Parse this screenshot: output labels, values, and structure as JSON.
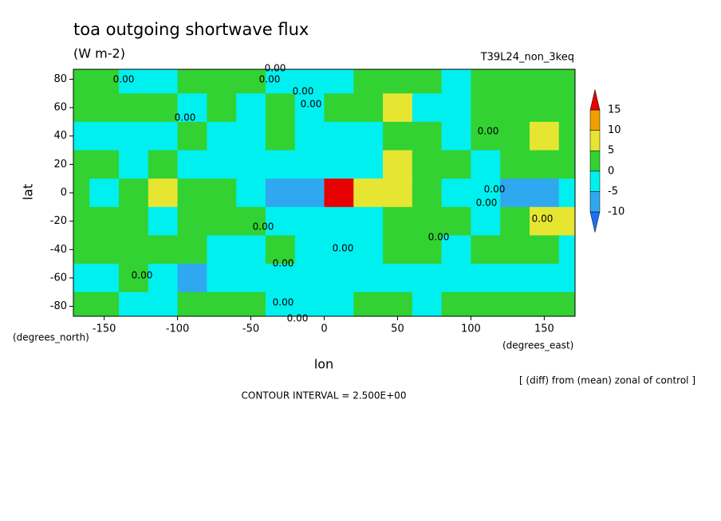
{
  "chart_data": {
    "type": "contour",
    "title": "toa outgoing shortwave flux",
    "subtitle": "(W m-2)",
    "run_label": "T39L24_non_3keq",
    "xlabel": "lon",
    "ylabel": "lat",
    "x_unit_label": "(degrees_east)",
    "y_unit_label": "(degrees_north)",
    "note": "[ (diff) from (mean) zonal of control ]",
    "contour_interval": "CONTOUR INTERVAL = 2.500E+00",
    "contour_label": "0.00",
    "x": [
      -170,
      -150,
      -130,
      -110,
      -90,
      -70,
      -50,
      -30,
      -10,
      10,
      30,
      50,
      70,
      90,
      110,
      130,
      150,
      170
    ],
    "y": [
      80,
      60,
      40,
      20,
      0,
      -20,
      -40,
      -60,
      -80
    ],
    "z": [
      [
        2,
        1,
        -2,
        -1,
        1,
        2,
        1,
        -1,
        -2,
        -1,
        1,
        2,
        1,
        -1,
        1,
        2,
        1,
        2
      ],
      [
        1,
        2,
        3,
        1,
        -1,
        2,
        -2,
        1,
        -1,
        2,
        1,
        6,
        -1,
        -2,
        1,
        2,
        1,
        2
      ],
      [
        -2,
        -1,
        -2,
        -2,
        1,
        -1,
        -2,
        1,
        -2,
        -1,
        -2,
        1,
        2,
        -1,
        1,
        2,
        6,
        2
      ],
      [
        1,
        2,
        -1,
        2,
        -2,
        -1,
        -3,
        -4,
        -2,
        -3,
        -1,
        6,
        3,
        1,
        -1,
        2,
        1,
        2
      ],
      [
        1,
        -3,
        2,
        6,
        2,
        1,
        -1,
        -6,
        -8,
        17,
        8,
        7,
        2,
        -1,
        -3,
        -6,
        -7,
        -4
      ],
      [
        2,
        1,
        1,
        -1,
        2,
        1,
        2,
        -2,
        -3,
        -2,
        -1,
        2,
        3,
        1,
        -1,
        1,
        7,
        8
      ],
      [
        2,
        1,
        2,
        1,
        2,
        -1,
        -1,
        1,
        -2,
        -2,
        -1,
        1,
        2,
        -1,
        2,
        1,
        2,
        -1
      ],
      [
        -1,
        -2,
        1,
        -2,
        -6,
        -1,
        -2,
        -1,
        -3,
        -1,
        -2,
        -1,
        -2,
        -1,
        -2,
        -3,
        -2,
        -1
      ],
      [
        2,
        1,
        -1,
        -2,
        1,
        2,
        1,
        -2,
        -1,
        -1,
        2,
        1,
        -1,
        2,
        1,
        1,
        2,
        1
      ]
    ],
    "xlim": [
      -171,
      171
    ],
    "ylim": [
      -87,
      87
    ],
    "xticks": [
      -150,
      -100,
      -50,
      0,
      50,
      100,
      150
    ],
    "yticks": [
      -80,
      -60,
      -40,
      -20,
      0,
      20,
      40,
      60,
      80
    ],
    "levels": [
      -10,
      -5,
      0,
      5,
      10,
      15
    ],
    "colors": [
      "#1e6ef0",
      "#30a8f0",
      "#00f0f0",
      "#32d232",
      "#e6e632",
      "#f0a000",
      "#e60000"
    ]
  }
}
